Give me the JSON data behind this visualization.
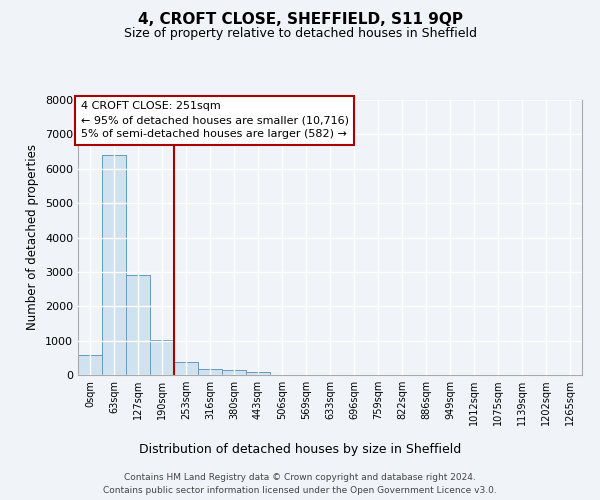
{
  "title": "4, CROFT CLOSE, SHEFFIELD, S11 9QP",
  "subtitle": "Size of property relative to detached houses in Sheffield",
  "xlabel": "Distribution of detached houses by size in Sheffield",
  "ylabel": "Number of detached properties",
  "bar_color": "#d0e2ef",
  "bar_edge_color": "#6699bb",
  "categories": [
    "0sqm",
    "63sqm",
    "127sqm",
    "190sqm",
    "253sqm",
    "316sqm",
    "380sqm",
    "443sqm",
    "506sqm",
    "569sqm",
    "633sqm",
    "696sqm",
    "759sqm",
    "822sqm",
    "886sqm",
    "949sqm",
    "1012sqm",
    "1075sqm",
    "1139sqm",
    "1202sqm",
    "1265sqm"
  ],
  "values": [
    580,
    6400,
    2920,
    1010,
    390,
    175,
    150,
    85,
    0,
    0,
    0,
    0,
    0,
    0,
    0,
    0,
    0,
    0,
    0,
    0,
    0
  ],
  "vline_x": 3.5,
  "vline_color": "#aa0000",
  "annotation_lines": [
    "4 CROFT CLOSE: 251sqm",
    "← 95% of detached houses are smaller (10,716)",
    "5% of semi-detached houses are larger (582) →"
  ],
  "ylim": [
    0,
    8000
  ],
  "yticks": [
    0,
    1000,
    2000,
    3000,
    4000,
    5000,
    6000,
    7000,
    8000
  ],
  "footer_line1": "Contains HM Land Registry data © Crown copyright and database right 2024.",
  "footer_line2": "Contains public sector information licensed under the Open Government Licence v3.0.",
  "background_color": "#f0f4f8",
  "grid_color": "#ffffff"
}
